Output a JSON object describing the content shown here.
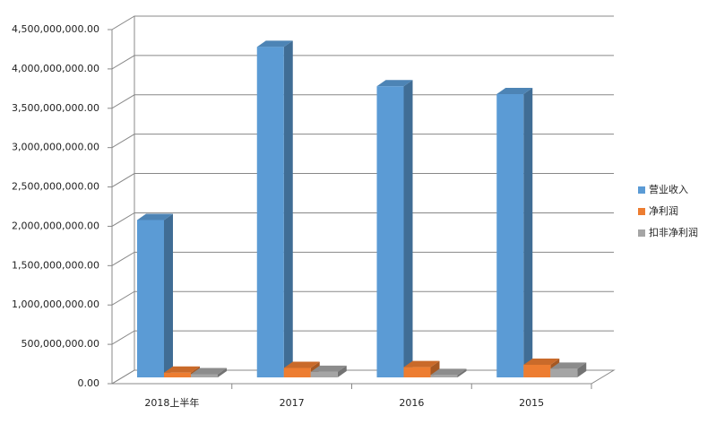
{
  "chart_data": {
    "type": "bar3d",
    "categories": [
      "2018上半年",
      "2017",
      "2016",
      "2015"
    ],
    "series": [
      {
        "name": "营业收入",
        "color": "#5b9bd5",
        "values": [
          2000000000,
          4200000000,
          3700000000,
          3600000000
        ]
      },
      {
        "name": "净利润",
        "color": "#ed7d31",
        "values": [
          60000000,
          120000000,
          130000000,
          160000000
        ]
      },
      {
        "name": "扣非净利润",
        "color": "#a5a5a5",
        "values": [
          40000000,
          70000000,
          30000000,
          110000000
        ]
      }
    ],
    "ylim": [
      0,
      4500000000
    ],
    "yticks": [
      {
        "value": 0,
        "label": "0.00"
      },
      {
        "value": 500000000,
        "label": "500,000,000.00"
      },
      {
        "value": 1000000000,
        "label": "1,000,000,000.00"
      },
      {
        "value": 1500000000,
        "label": "1,500,000,000.00"
      },
      {
        "value": 2000000000,
        "label": "2,000,000,000.00"
      },
      {
        "value": 2500000000,
        "label": "2,500,000,000.00"
      },
      {
        "value": 3000000000,
        "label": "3,000,000,000.00"
      },
      {
        "value": 3500000000,
        "label": "3,500,000,000.00"
      },
      {
        "value": 4000000000,
        "label": "4,000,000,000.00"
      },
      {
        "value": 4500000000,
        "label": "4,500,000,000.00"
      }
    ],
    "grid": true,
    "legend": "right"
  }
}
